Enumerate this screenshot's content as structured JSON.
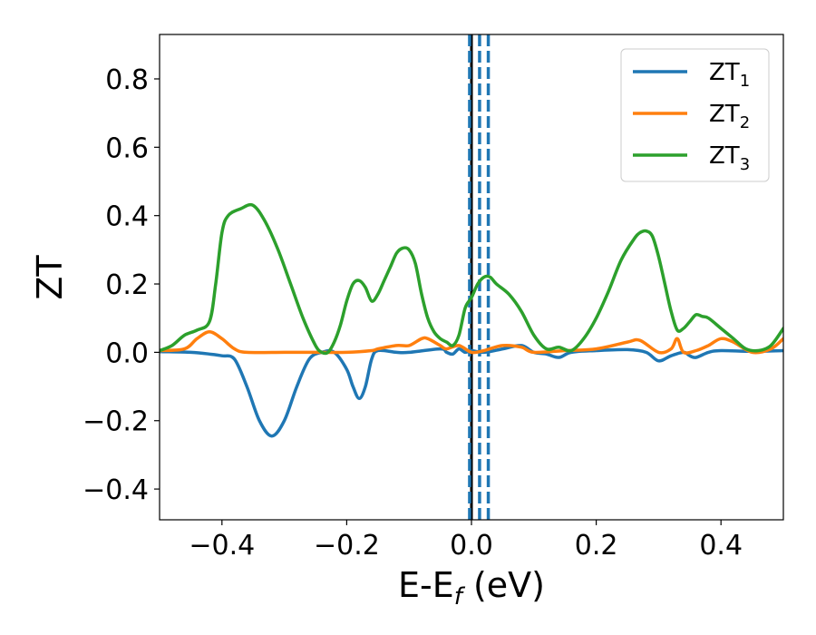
{
  "chart_data": {
    "type": "line",
    "xlabel": {
      "main": "E-E",
      "sub": "f",
      "suffix": " (eV)"
    },
    "ylabel": "ZT",
    "xlim": [
      -0.5,
      0.5
    ],
    "ylim": [
      -0.49,
      0.93
    ],
    "xticks": [
      -0.4,
      -0.2,
      0.0,
      0.2,
      0.4
    ],
    "xtick_labels": [
      "−0.4",
      "−0.2",
      "0.0",
      "0.2",
      "0.4"
    ],
    "yticks": [
      -0.4,
      -0.2,
      0.0,
      0.2,
      0.4,
      0.6,
      0.8
    ],
    "ytick_labels": [
      "−0.4",
      "−0.2",
      "0.0",
      "0.2",
      "0.4",
      "0.6",
      "0.8"
    ],
    "legend_position": "top-right",
    "vlines": [
      {
        "x": 0.0,
        "color": "#000000",
        "style": "solid"
      },
      {
        "x": -0.003,
        "color": "#1f77b4",
        "style": "dashed"
      },
      {
        "x": 0.013,
        "color": "#1f77b4",
        "style": "dashed"
      },
      {
        "x": 0.027,
        "color": "#1f77b4",
        "style": "dashed"
      }
    ],
    "series": [
      {
        "name": "ZT",
        "subscript": "1",
        "color": "#1f77b4",
        "x": [
          -0.5,
          -0.45,
          -0.42,
          -0.4,
          -0.38,
          -0.36,
          -0.34,
          -0.32,
          -0.3,
          -0.28,
          -0.26,
          -0.24,
          -0.22,
          -0.2,
          -0.19,
          -0.18,
          -0.17,
          -0.16,
          -0.15,
          -0.12,
          -0.1,
          -0.05,
          -0.04,
          -0.03,
          -0.02,
          -0.01,
          0.0,
          0.02,
          0.05,
          0.08,
          0.1,
          0.12,
          0.14,
          0.16,
          0.2,
          0.25,
          0.28,
          0.3,
          0.32,
          0.34,
          0.35,
          0.36,
          0.38,
          0.4,
          0.45,
          0.5
        ],
        "y": [
          0.002,
          0.0,
          -0.005,
          -0.01,
          -0.02,
          -0.1,
          -0.2,
          -0.245,
          -0.2,
          -0.1,
          -0.02,
          0.0,
          0.0,
          -0.05,
          -0.1,
          -0.135,
          -0.1,
          -0.02,
          0.005,
          0.0,
          0.0,
          0.01,
          0.0,
          -0.005,
          0.01,
          0.0,
          0.005,
          0.0,
          0.01,
          0.02,
          0.0,
          -0.005,
          -0.015,
          0.0,
          0.005,
          0.008,
          0.0,
          -0.025,
          -0.01,
          0.0,
          -0.01,
          -0.015,
          0.0,
          0.005,
          0.003,
          0.005
        ]
      },
      {
        "name": "ZT",
        "subscript": "2",
        "color": "#ff7f0e",
        "x": [
          -0.5,
          -0.46,
          -0.44,
          -0.42,
          -0.4,
          -0.38,
          -0.36,
          -0.3,
          -0.25,
          -0.2,
          -0.16,
          -0.15,
          -0.12,
          -0.1,
          -0.08,
          -0.07,
          -0.05,
          -0.04,
          -0.02,
          0.0,
          0.02,
          0.05,
          0.08,
          0.1,
          0.15,
          0.2,
          0.25,
          0.27,
          0.3,
          0.32,
          0.33,
          0.34,
          0.36,
          0.38,
          0.4,
          0.42,
          0.45,
          0.48,
          0.5
        ],
        "y": [
          0.005,
          0.01,
          0.04,
          0.06,
          0.04,
          0.01,
          0.0,
          0.0,
          0.0,
          0.0,
          0.005,
          0.01,
          0.02,
          0.02,
          0.04,
          0.04,
          0.02,
          0.01,
          0.02,
          0.0,
          0.005,
          0.02,
          0.015,
          0.0,
          0.005,
          0.01,
          0.03,
          0.035,
          0.0,
          0.01,
          0.04,
          0.0,
          0.005,
          0.02,
          0.04,
          0.03,
          0.0,
          0.01,
          0.04
        ]
      },
      {
        "name": "ZT",
        "subscript": "3",
        "color": "#2ca02c",
        "x": [
          -0.5,
          -0.48,
          -0.46,
          -0.44,
          -0.42,
          -0.41,
          -0.4,
          -0.39,
          -0.37,
          -0.35,
          -0.33,
          -0.31,
          -0.29,
          -0.27,
          -0.25,
          -0.24,
          -0.23,
          -0.22,
          -0.21,
          -0.2,
          -0.19,
          -0.18,
          -0.17,
          -0.16,
          -0.15,
          -0.14,
          -0.13,
          -0.12,
          -0.11,
          -0.1,
          -0.09,
          -0.08,
          -0.07,
          -0.06,
          -0.05,
          -0.04,
          -0.03,
          -0.02,
          -0.01,
          0.0,
          0.01,
          0.02,
          0.03,
          0.04,
          0.06,
          0.08,
          0.1,
          0.12,
          0.14,
          0.16,
          0.18,
          0.2,
          0.22,
          0.24,
          0.26,
          0.27,
          0.28,
          0.29,
          0.3,
          0.31,
          0.32,
          0.33,
          0.34,
          0.35,
          0.36,
          0.37,
          0.38,
          0.4,
          0.42,
          0.44,
          0.46,
          0.48,
          0.5
        ],
        "y": [
          0.005,
          0.02,
          0.05,
          0.065,
          0.09,
          0.2,
          0.35,
          0.4,
          0.42,
          0.43,
          0.38,
          0.3,
          0.2,
          0.1,
          0.02,
          0.0,
          0.0,
          0.03,
          0.08,
          0.15,
          0.2,
          0.21,
          0.19,
          0.15,
          0.17,
          0.21,
          0.25,
          0.29,
          0.305,
          0.3,
          0.26,
          0.17,
          0.1,
          0.06,
          0.04,
          0.03,
          0.02,
          0.05,
          0.13,
          0.16,
          0.2,
          0.22,
          0.22,
          0.2,
          0.17,
          0.12,
          0.05,
          0.01,
          0.015,
          0.005,
          0.04,
          0.1,
          0.18,
          0.27,
          0.33,
          0.35,
          0.355,
          0.34,
          0.28,
          0.2,
          0.12,
          0.065,
          0.07,
          0.09,
          0.11,
          0.105,
          0.1,
          0.07,
          0.04,
          0.01,
          0.005,
          0.02,
          0.07
        ]
      }
    ]
  }
}
